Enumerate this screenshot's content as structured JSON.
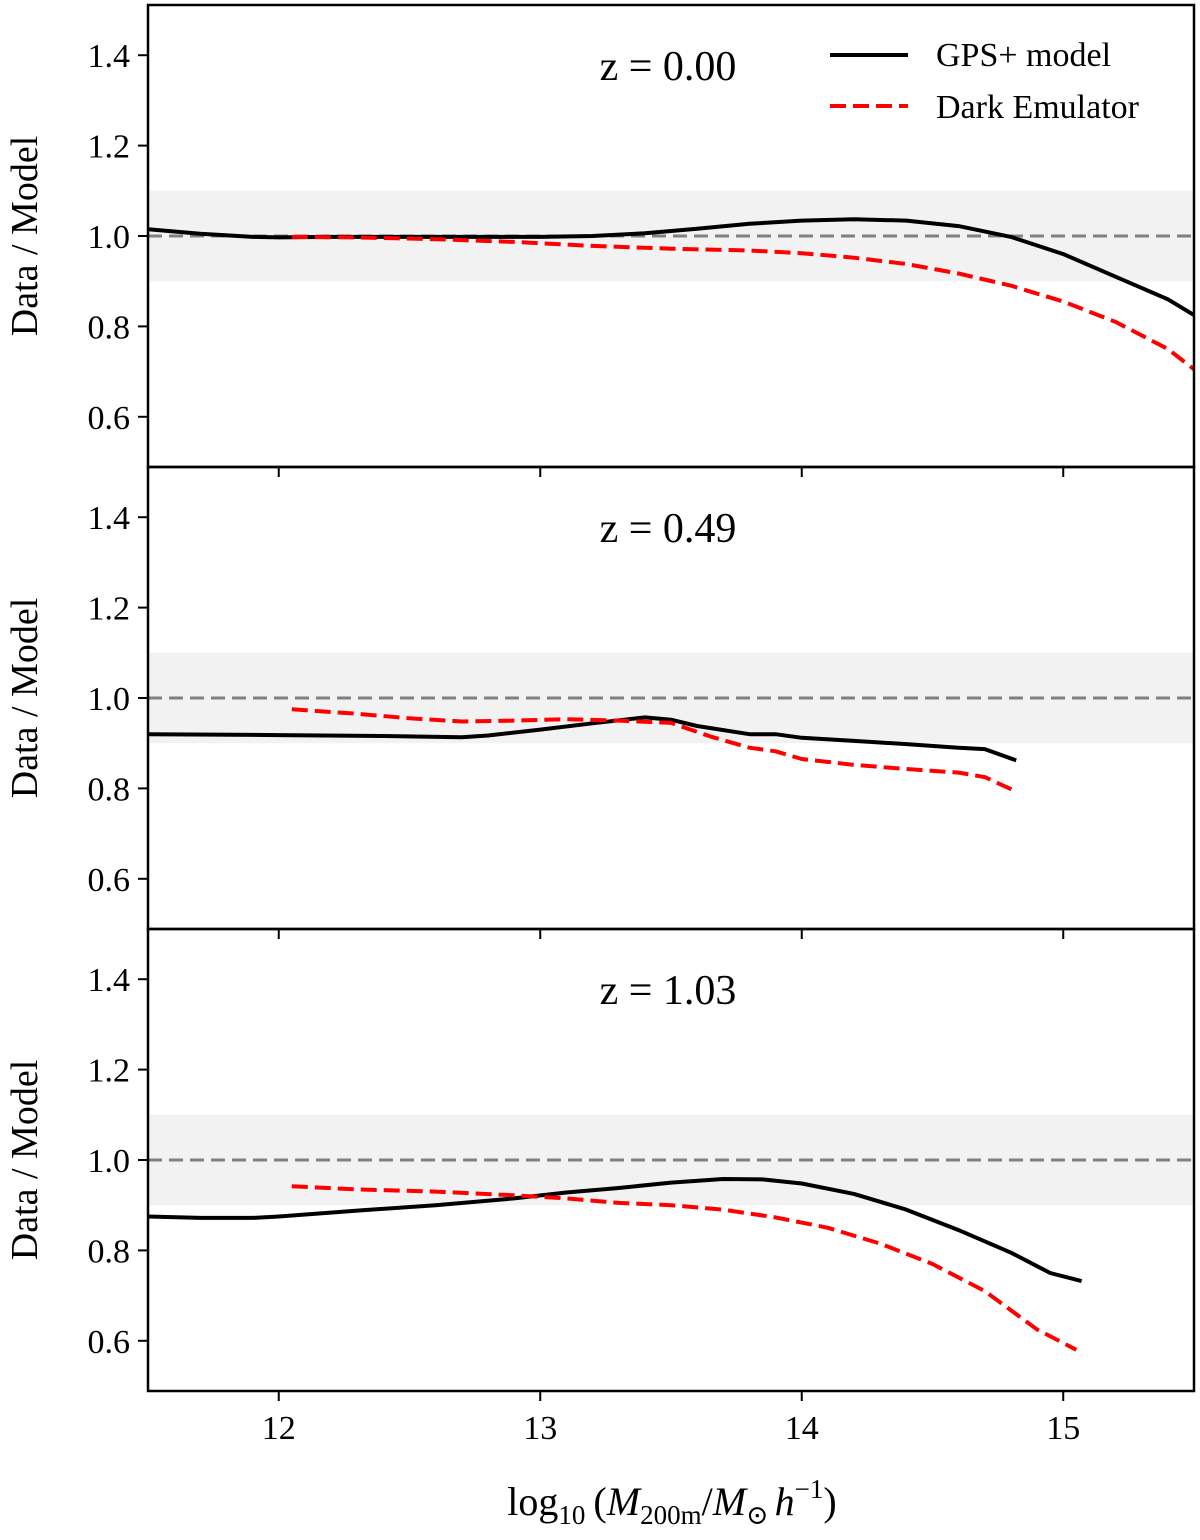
{
  "chart_data": [
    {
      "type": "line",
      "title": "z = 0.00",
      "xlabel": "",
      "ylabel": "Data / Model",
      "xlim": [
        11.5,
        15.5
      ],
      "ylim": [
        0.5,
        1.5
      ],
      "yticks": [
        "0.6",
        "0.8",
        "1.0",
        "1.2",
        "1.4"
      ],
      "reference_line": 1.0,
      "shaded_band": [
        0.9,
        1.1
      ],
      "series": [
        {
          "name": "GPS+ model",
          "color": "#000000",
          "style": "solid",
          "x": [
            11.5,
            11.7,
            11.9,
            12.0,
            12.2,
            12.5,
            12.8,
            13.0,
            13.2,
            13.4,
            13.6,
            13.8,
            14.0,
            14.2,
            14.4,
            14.6,
            14.8,
            15.0,
            15.2,
            15.4,
            15.5
          ],
          "y": [
            1.015,
            1.005,
            0.998,
            0.997,
            0.998,
            0.998,
            0.998,
            0.998,
            1.0,
            1.006,
            1.016,
            1.027,
            1.034,
            1.037,
            1.034,
            1.022,
            0.998,
            0.96,
            0.91,
            0.86,
            0.825
          ]
        },
        {
          "name": "Dark Emulator",
          "color": "#ff0000",
          "style": "dashed",
          "x": [
            12.05,
            12.3,
            12.6,
            12.9,
            13.2,
            13.5,
            13.8,
            14.0,
            14.2,
            14.4,
            14.6,
            14.8,
            15.0,
            15.2,
            15.4,
            15.5
          ],
          "y": [
            0.998,
            0.997,
            0.993,
            0.987,
            0.978,
            0.972,
            0.968,
            0.962,
            0.952,
            0.938,
            0.917,
            0.89,
            0.855,
            0.81,
            0.75,
            0.705
          ]
        }
      ]
    },
    {
      "type": "line",
      "title": "z = 0.49",
      "xlabel": "",
      "ylabel": "Data / Model",
      "xlim": [
        11.5,
        15.5
      ],
      "ylim": [
        0.5,
        1.5
      ],
      "yticks": [
        "0.6",
        "0.8",
        "1.0",
        "1.2",
        "1.4"
      ],
      "reference_line": 1.0,
      "shaded_band": [
        0.9,
        1.1
      ],
      "series": [
        {
          "name": "GPS+ model",
          "color": "#000000",
          "style": "solid",
          "x": [
            11.5,
            12.0,
            12.4,
            12.7,
            12.8,
            13.0,
            13.2,
            13.4,
            13.5,
            13.6,
            13.8,
            13.9,
            14.0,
            14.2,
            14.4,
            14.6,
            14.7,
            14.82
          ],
          "y": [
            0.92,
            0.918,
            0.916,
            0.913,
            0.917,
            0.93,
            0.944,
            0.957,
            0.952,
            0.938,
            0.92,
            0.92,
            0.912,
            0.905,
            0.898,
            0.89,
            0.887,
            0.862
          ]
        },
        {
          "name": "Dark Emulator",
          "color": "#ff0000",
          "style": "dashed",
          "x": [
            12.05,
            12.3,
            12.5,
            12.7,
            12.9,
            13.1,
            13.3,
            13.5,
            13.65,
            13.8,
            13.9,
            14.0,
            14.2,
            14.4,
            14.6,
            14.7,
            14.82
          ],
          "y": [
            0.975,
            0.965,
            0.955,
            0.948,
            0.95,
            0.953,
            0.95,
            0.945,
            0.915,
            0.89,
            0.882,
            0.865,
            0.852,
            0.843,
            0.835,
            0.825,
            0.793
          ]
        }
      ]
    },
    {
      "type": "line",
      "title": "z = 1.03",
      "xlabel": "log10(M200m / M⊙ h^-1)",
      "ylabel": "Data / Model",
      "xlim": [
        11.5,
        15.5
      ],
      "ylim": [
        0.5,
        1.5
      ],
      "yticks": [
        "0.6",
        "0.8",
        "1.0",
        "1.2",
        "1.4"
      ],
      "xticks": [
        "12",
        "13",
        "14",
        "15"
      ],
      "reference_line": 1.0,
      "shaded_band": [
        0.9,
        1.1
      ],
      "series": [
        {
          "name": "GPS+ model",
          "color": "#000000",
          "style": "solid",
          "x": [
            11.5,
            11.7,
            11.9,
            12.0,
            12.3,
            12.6,
            12.9,
            13.1,
            13.3,
            13.5,
            13.7,
            13.85,
            14.0,
            14.2,
            14.4,
            14.6,
            14.8,
            14.95,
            15.07
          ],
          "y": [
            0.875,
            0.872,
            0.872,
            0.875,
            0.888,
            0.9,
            0.915,
            0.928,
            0.938,
            0.95,
            0.958,
            0.957,
            0.948,
            0.925,
            0.89,
            0.845,
            0.795,
            0.75,
            0.732
          ]
        },
        {
          "name": "Dark Emulator",
          "color": "#ff0000",
          "style": "dashed",
          "x": [
            12.05,
            12.3,
            12.6,
            12.9,
            13.1,
            13.3,
            13.5,
            13.7,
            13.9,
            14.1,
            14.3,
            14.5,
            14.7,
            14.9,
            15.05
          ],
          "y": [
            0.942,
            0.935,
            0.93,
            0.922,
            0.915,
            0.905,
            0.9,
            0.89,
            0.873,
            0.85,
            0.815,
            0.77,
            0.71,
            0.625,
            0.58
          ]
        }
      ]
    }
  ],
  "legend": {
    "placement": "top-right",
    "entries": [
      {
        "label": "GPS+ model",
        "color": "#000000",
        "style": "solid"
      },
      {
        "label": "Dark Emulator",
        "color": "#ff0000",
        "style": "dashed"
      }
    ]
  },
  "xlabel_parts": {
    "prefix": "log",
    "prefix_sub": "10",
    "open": "(",
    "num_var": "M",
    "num_sub": "200m",
    "slash": "/",
    "den_var": "M",
    "den_sub": "⊙",
    "h_var": "h",
    "h_exp": "−1",
    "close": ")"
  },
  "colors": {
    "band": "#f2f2f2",
    "reference": "#808080",
    "axis": "#000000"
  }
}
